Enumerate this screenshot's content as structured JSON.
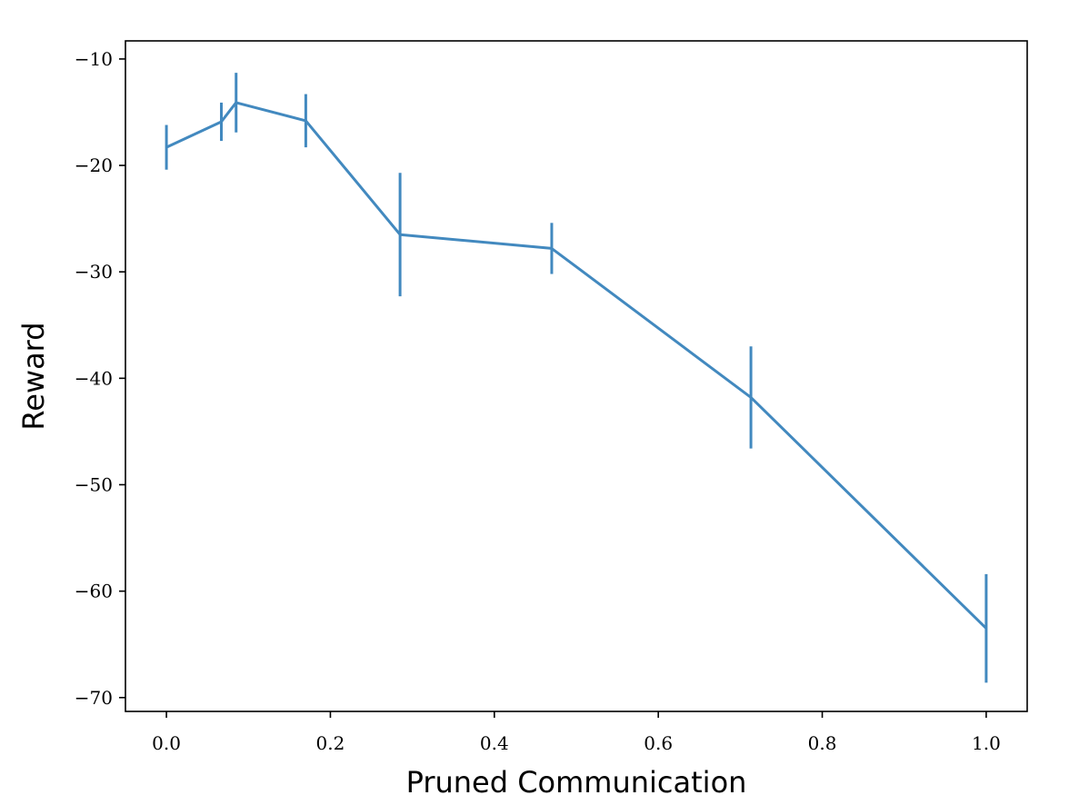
{
  "chart_data": {
    "type": "line",
    "title": "",
    "xlabel": "Pruned Communication",
    "ylabel": "Reward",
    "xlim": [
      -0.05,
      1.05
    ],
    "ylim": [
      -71.3,
      -8.3
    ],
    "xticks": [
      0.0,
      0.2,
      0.4,
      0.6,
      0.8,
      1.0
    ],
    "xtick_labels": [
      "0.0",
      "0.2",
      "0.4",
      "0.6",
      "0.8",
      "1.0"
    ],
    "yticks": [
      -10,
      -20,
      -30,
      -40,
      -50,
      -60,
      -70
    ],
    "ytick_labels": [
      "−10",
      "−20",
      "−30",
      "−40",
      "−50",
      "−60",
      "−70"
    ],
    "grid": false,
    "legend": "none",
    "series": [
      {
        "color": "#4289bf",
        "x": [
          0.0,
          0.067,
          0.085,
          0.17,
          0.285,
          0.47,
          0.713,
          1.0
        ],
        "y": [
          -18.3,
          -15.9,
          -14.1,
          -15.8,
          -26.5,
          -27.8,
          -41.8,
          -63.5
        ],
        "yerr": [
          2.1,
          1.8,
          2.8,
          2.5,
          5.8,
          2.4,
          4.8,
          5.1
        ]
      }
    ]
  }
}
